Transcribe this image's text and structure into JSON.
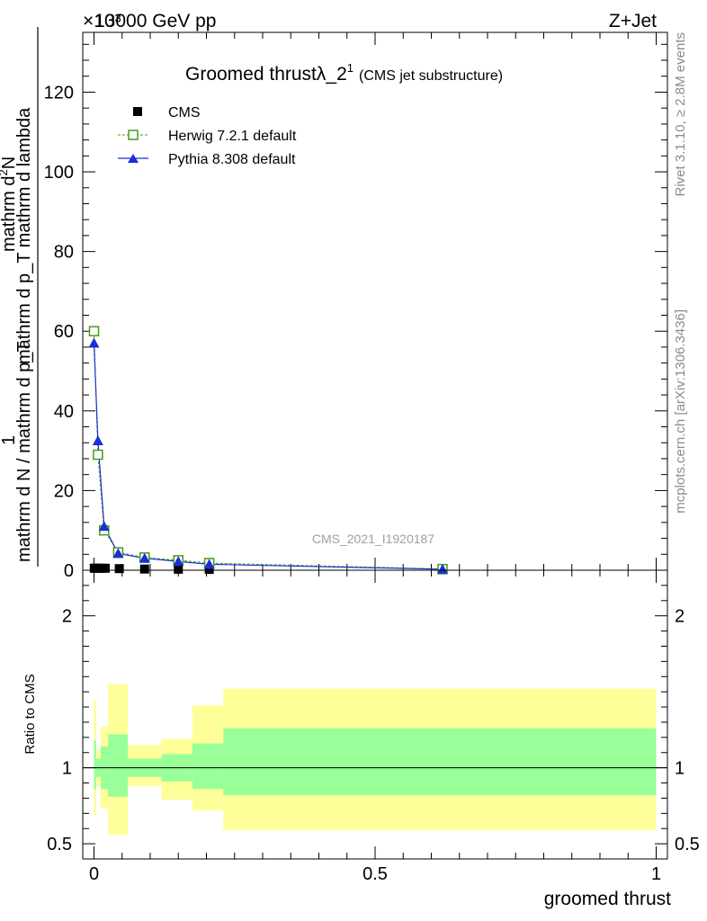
{
  "header": {
    "exponent": "×10³",
    "energy": "13000 GeV pp",
    "process": "Z+Jet"
  },
  "side_text": {
    "rivet": "Rivet 3.1.10, ≥ 2.8M events",
    "mcplots": "mcplots.cern.ch [arXiv:1306.3436]"
  },
  "watermark": "CMS_2021_I1920187",
  "chart_data": [
    {
      "type": "line",
      "title": "Groomed thrustλ_2",
      "title_superscript": "1",
      "subtitle": "(CMS jet substructure)",
      "ylabel_numerator": "mathrm d²N",
      "ylabel_numerator_text": "mathrm d",
      "ylabel_numerator_sup": "2",
      "ylabel_numerator_tail": "N",
      "ylabel_denominator": "mathrm d p_T mathrm d lambda",
      "ylabel_one": "1",
      "ylabel_lower": "mathrm d N / mathrm d p_T",
      "ylim": [
        0,
        135
      ],
      "xlim": [
        -0.02,
        1.02
      ],
      "yticks": [
        0,
        20,
        40,
        60,
        80,
        100,
        120
      ],
      "ytick_labels": [
        "0",
        "20",
        "40",
        "60",
        "80",
        "100",
        "120"
      ],
      "legend_position": "top-left",
      "series": [
        {
          "name": "CMS",
          "color": "#000000",
          "marker": "square",
          "x": [
            0.0005,
            0.003,
            0.007,
            0.013,
            0.02,
            0.045,
            0.09,
            0.15,
            0.205,
            0.62
          ],
          "y": [
            0.5,
            0.5,
            0.5,
            0.5,
            0.5,
            0.4,
            0.3,
            0.25,
            0.2,
            0.1
          ]
        },
        {
          "name": "Herwig 7.2.1 default",
          "color": "#4a9a1a",
          "marker": "open-square",
          "x": [
            0.0,
            0.007,
            0.018,
            0.043,
            0.09,
            0.15,
            0.205,
            0.62
          ],
          "y": [
            60,
            29,
            10,
            4.5,
            3.2,
            2.5,
            1.8,
            0.3
          ]
        },
        {
          "name": "Pythia 8.308 default",
          "color": "#1a2fd6",
          "marker": "triangle",
          "x": [
            0.0,
            0.007,
            0.018,
            0.043,
            0.09,
            0.15,
            0.205,
            0.62
          ],
          "y": [
            57,
            32.5,
            11,
            4.2,
            3.0,
            2.2,
            1.5,
            0.25
          ]
        }
      ]
    },
    {
      "type": "area",
      "ylabel": "Ratio to CMS",
      "xlabel": "groomed thrust",
      "ylim": [
        0.4,
        2.3
      ],
      "xlim": [
        -0.02,
        1.02
      ],
      "xticks": [
        0,
        0.5,
        1
      ],
      "xtick_labels": [
        "0",
        "0.5",
        "1"
      ],
      "yticks": [
        0.5,
        1,
        2
      ],
      "ytick_labels": [
        "0.5",
        "1",
        "2"
      ],
      "reference_line": 1,
      "bins": [
        {
          "x0": 0.0,
          "x1": 0.004,
          "inner": [
            0.86,
            1.18
          ],
          "outer": [
            0.69,
            1.45
          ]
        },
        {
          "x0": 0.004,
          "x1": 0.012,
          "inner": [
            0.94,
            1.06
          ],
          "outer": [
            0.88,
            1.12
          ]
        },
        {
          "x0": 0.012,
          "x1": 0.025,
          "inner": [
            0.86,
            1.14
          ],
          "outer": [
            0.73,
            1.27
          ]
        },
        {
          "x0": 0.025,
          "x1": 0.06,
          "inner": [
            0.81,
            1.22
          ],
          "outer": [
            0.56,
            1.55
          ]
        },
        {
          "x0": 0.06,
          "x1": 0.12,
          "inner": [
            0.94,
            1.06
          ],
          "outer": [
            0.88,
            1.15
          ]
        },
        {
          "x0": 0.12,
          "x1": 0.175,
          "inner": [
            0.91,
            1.09
          ],
          "outer": [
            0.79,
            1.19
          ]
        },
        {
          "x0": 0.175,
          "x1": 0.23,
          "inner": [
            0.86,
            1.16
          ],
          "outer": [
            0.72,
            1.41
          ]
        },
        {
          "x0": 0.23,
          "x1": 1.0,
          "inner": [
            0.82,
            1.26
          ],
          "outer": [
            0.59,
            1.52
          ]
        }
      ]
    }
  ]
}
